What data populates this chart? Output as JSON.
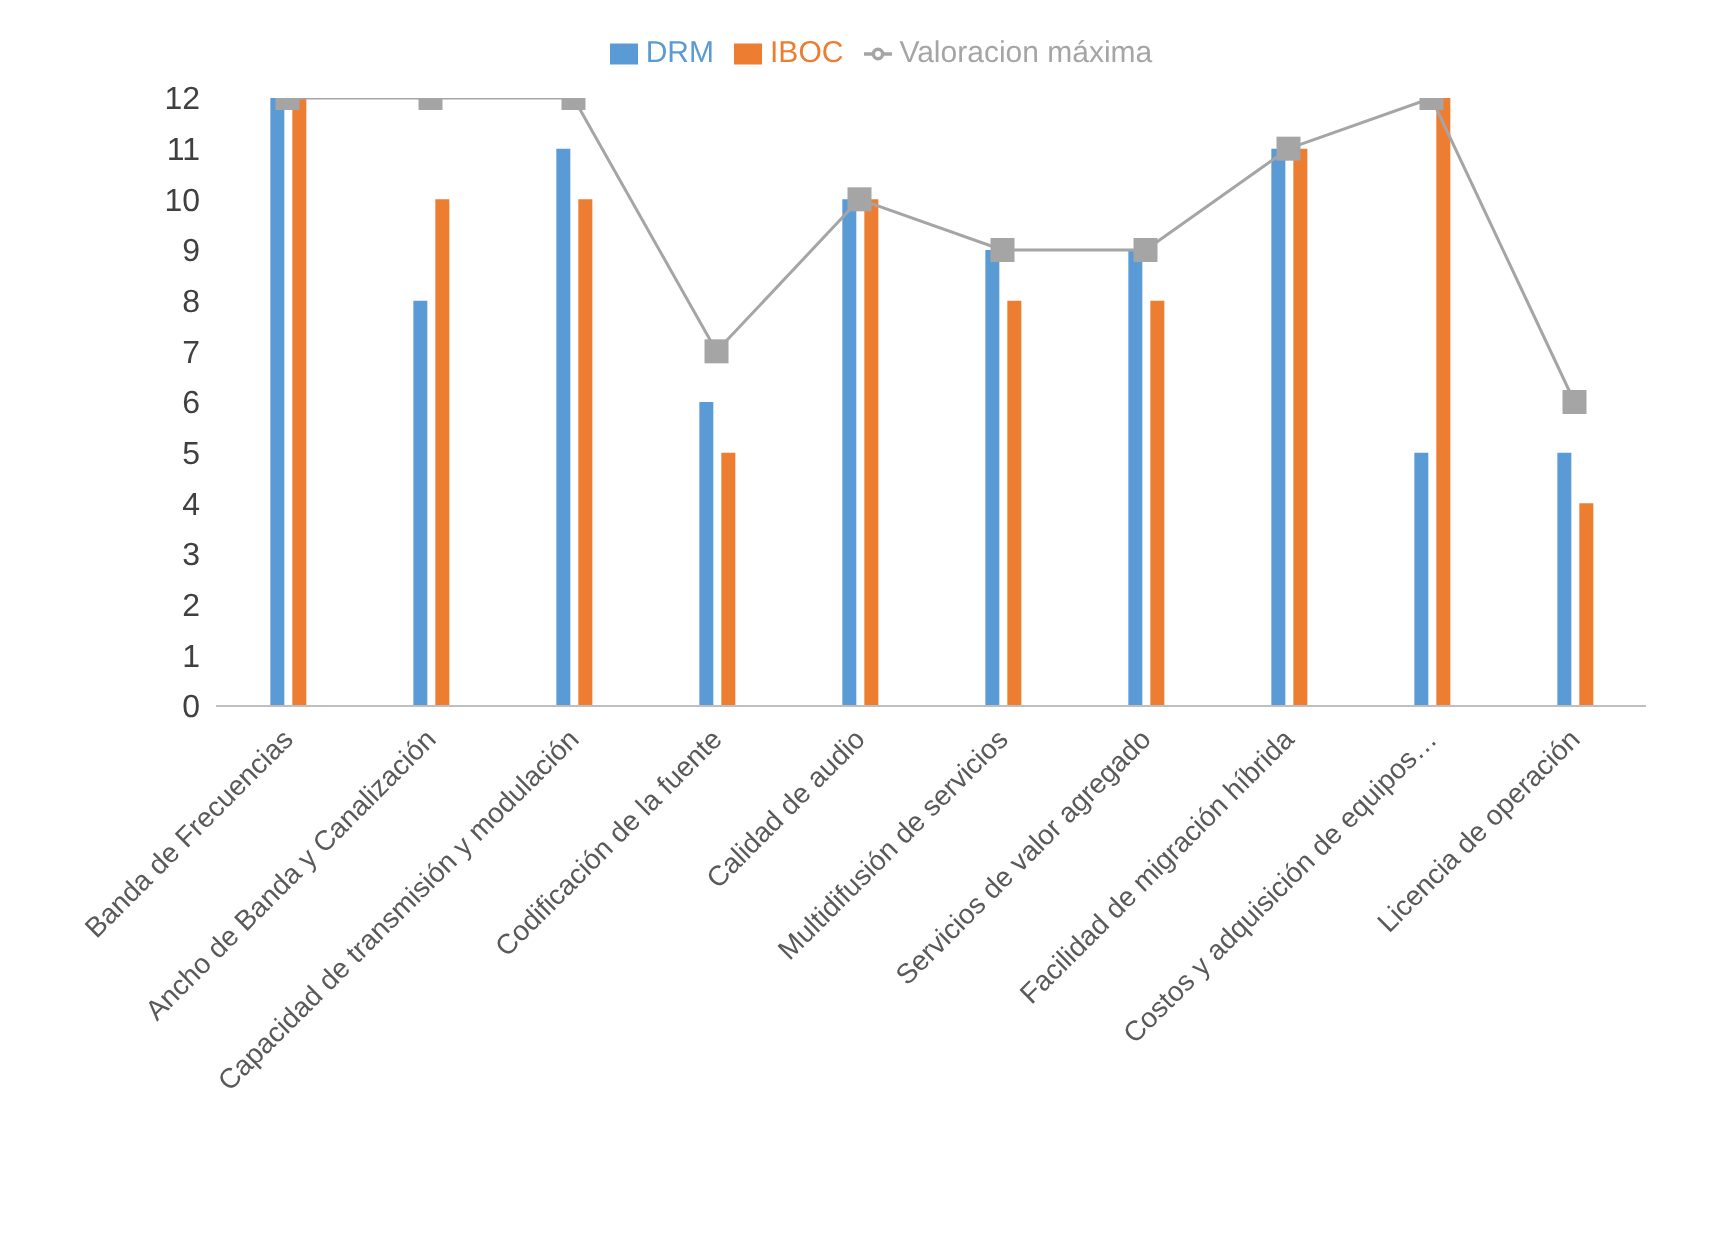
{
  "chart_data": {
    "type": "bar",
    "categories": [
      "Banda de Frecuencias",
      "Ancho de Banda y Canalización",
      "Capacidad de transmisión y modulación",
      "Codificación de la fuente",
      "Calidad de audio",
      "Multidifusión de servicios",
      "Servicios de valor agregado",
      "Facilidad de migración híbrida",
      "Costos y adquisición de equipos…",
      "Licencia de operación"
    ],
    "series": [
      {
        "name": "DRM",
        "color": "#5b9bd5",
        "values": [
          12,
          8,
          11,
          6,
          10,
          9,
          9,
          11,
          5,
          5
        ]
      },
      {
        "name": "IBOC",
        "color": "#ed7d31",
        "values": [
          12,
          10,
          10,
          5,
          10,
          8,
          8,
          11,
          12,
          4
        ]
      },
      {
        "name": "Valoracion máxima",
        "type": "line",
        "color": "#a5a5a5",
        "values": [
          12,
          12,
          12,
          7,
          10,
          9,
          9,
          11,
          12,
          6
        ]
      }
    ],
    "ylim": [
      0,
      12
    ],
    "yticks": [
      0,
      1,
      2,
      3,
      4,
      5,
      6,
      7,
      8,
      9,
      10,
      11,
      12
    ],
    "legend": "top",
    "marker": "square"
  }
}
